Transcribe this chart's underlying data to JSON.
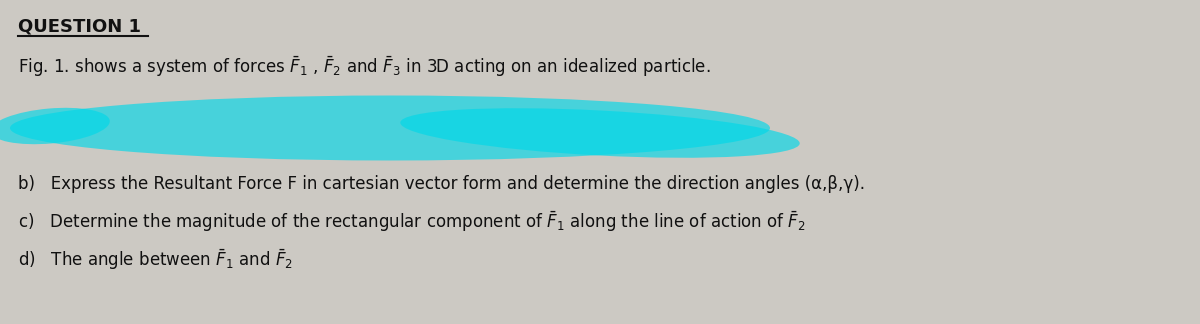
{
  "title": "QUESTION 1",
  "line1": "Fig. 1. shows a system of forces $\\bar{F}_1$ , $\\bar{F}_2$ and $\\bar{F}_3$ in 3D acting on an idealized particle.",
  "line_b": "b)   Express the Resultant Force F in cartesian vector form and determine the direction angles (α,β,γ).",
  "line_c": "c)   Determine the magnitude of the rectangular component of $\\bar{F}_1$ along the line of action of $\\bar{F}_2$",
  "line_d": "d)   The angle between $\\bar{F}_1$ and $\\bar{F}_2$",
  "bg_color": "#ccc9c3",
  "text_color": "#111111",
  "highlight_color": "#00d8e8",
  "highlight_alpha": 0.65,
  "title_fontsize": 13,
  "body_fontsize": 12
}
